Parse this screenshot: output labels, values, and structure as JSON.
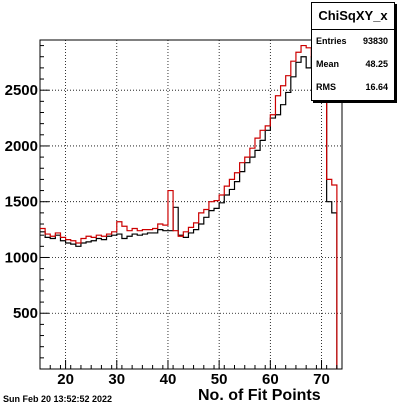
{
  "chart_data": {
    "type": "histogram",
    "title": "ChiSqXY_x",
    "xlabel": "No. of Fit Points",
    "ylabel": "",
    "xlim": [
      15,
      74
    ],
    "ylim": [
      0,
      2950
    ],
    "grid": true,
    "x_ticks": [
      20,
      30,
      40,
      50,
      60,
      70
    ],
    "y_ticks": [
      500,
      1000,
      1500,
      2000,
      2500
    ],
    "series": [
      {
        "color": "#000000",
        "bins": [
          15,
          16,
          17,
          18,
          19,
          20,
          21,
          22,
          23,
          24,
          25,
          26,
          27,
          28,
          29,
          30,
          31,
          32,
          33,
          34,
          35,
          36,
          37,
          38,
          39,
          40,
          41,
          42,
          43,
          44,
          45,
          46,
          47,
          48,
          49,
          50,
          51,
          52,
          53,
          54,
          55,
          56,
          57,
          58,
          59,
          60,
          61,
          62,
          63,
          64,
          65,
          66,
          67,
          68,
          69,
          70,
          71,
          72
        ],
        "values": [
          1230,
          1180,
          1170,
          1200,
          1150,
          1130,
          1120,
          1100,
          1130,
          1140,
          1150,
          1170,
          1160,
          1190,
          1200,
          1210,
          1170,
          1190,
          1210,
          1200,
          1210,
          1220,
          1220,
          1250,
          1240,
          1240,
          1450,
          1200,
          1180,
          1220,
          1250,
          1300,
          1360,
          1420,
          1440,
          1490,
          1560,
          1610,
          1680,
          1770,
          1850,
          1900,
          1960,
          2050,
          2140,
          2250,
          2280,
          2370,
          2480,
          2620,
          2750,
          2800,
          2700,
          2800,
          2700,
          2500,
          1500,
          1400
        ]
      },
      {
        "color": "#cc0000",
        "bins": [
          15,
          16,
          17,
          18,
          19,
          20,
          21,
          22,
          23,
          24,
          25,
          26,
          27,
          28,
          29,
          30,
          31,
          32,
          33,
          34,
          35,
          36,
          37,
          38,
          39,
          40,
          41,
          42,
          43,
          44,
          45,
          46,
          47,
          48,
          49,
          50,
          51,
          52,
          53,
          54,
          55,
          56,
          57,
          58,
          59,
          60,
          61,
          62,
          63,
          64,
          65,
          66,
          67,
          68,
          69,
          70,
          71,
          72
        ],
        "values": [
          1260,
          1210,
          1190,
          1220,
          1180,
          1160,
          1150,
          1130,
          1170,
          1190,
          1180,
          1200,
          1190,
          1210,
          1230,
          1320,
          1280,
          1240,
          1260,
          1240,
          1250,
          1250,
          1260,
          1300,
          1290,
          1600,
          1240,
          1190,
          1230,
          1270,
          1310,
          1400,
          1430,
          1500,
          1510,
          1560,
          1640,
          1700,
          1760,
          1850,
          1900,
          1980,
          2070,
          2140,
          2180,
          2280,
          2450,
          2540,
          2630,
          2760,
          2840,
          2900,
          2880,
          2800,
          2720,
          2400,
          1700,
          1650
        ]
      }
    ],
    "stats": {
      "entries_label": "Entries",
      "entries": "93830",
      "mean_label": "Mean",
      "mean": "48.25",
      "rms_label": "RMS",
      "rms": "16.64"
    }
  },
  "footer": {
    "timestamp": "Sun Feb 20 13:52:52 2022"
  }
}
